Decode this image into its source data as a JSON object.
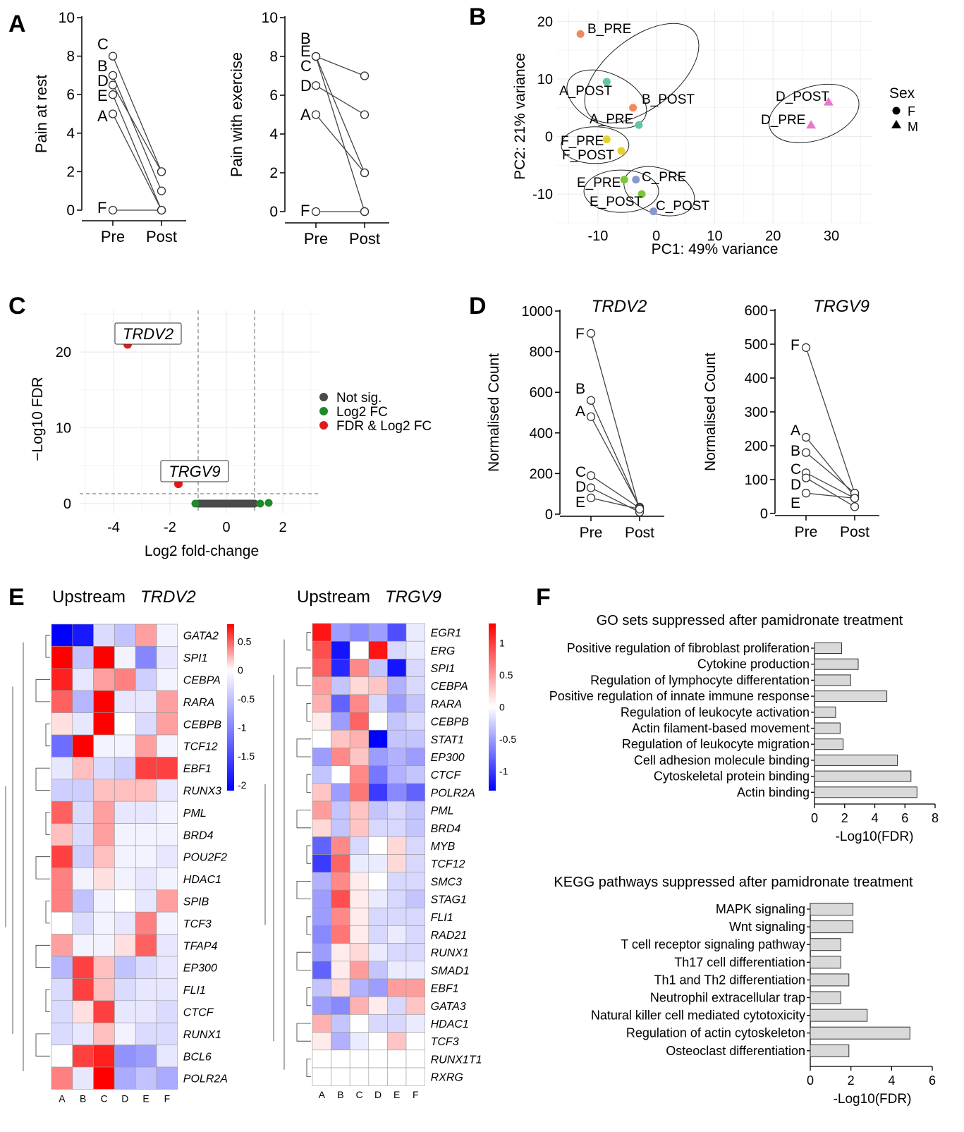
{
  "panel_letters": [
    "A",
    "B",
    "C",
    "D",
    "E",
    "F"
  ],
  "chart_data": [
    {
      "panel": "A",
      "type": "line",
      "ylabel": "Pain at rest",
      "x": [
        "Pre",
        "Post"
      ],
      "ylim": [
        0,
        10
      ],
      "yticks": [
        "0",
        "2",
        "4",
        "6",
        "8",
        "10"
      ],
      "series": [
        {
          "name": "C",
          "values": [
            8,
            2
          ]
        },
        {
          "name": "B",
          "values": [
            7,
            1
          ]
        },
        {
          "name": "D",
          "values": [
            6.5,
            2
          ]
        },
        {
          "name": "E",
          "values": [
            6,
            0
          ]
        },
        {
          "name": "A",
          "values": [
            5,
            0
          ]
        },
        {
          "name": "F",
          "values": [
            0,
            0
          ]
        }
      ]
    },
    {
      "panel": "A",
      "type": "line",
      "ylabel": "Pain with exercise",
      "x": [
        "Pre",
        "Post"
      ],
      "ylim": [
        0,
        10
      ],
      "yticks": [
        "0",
        "2",
        "4",
        "6",
        "8",
        "10"
      ],
      "series": [
        {
          "name": "B",
          "values": [
            8,
            7
          ]
        },
        {
          "name": "E",
          "values": [
            8,
            2
          ]
        },
        {
          "name": "C",
          "values": [
            8,
            0
          ]
        },
        {
          "name": "D",
          "values": [
            6.5,
            5
          ]
        },
        {
          "name": "A",
          "values": [
            5,
            2
          ]
        },
        {
          "name": "F",
          "values": [
            0,
            0
          ]
        }
      ]
    },
    {
      "panel": "B",
      "type": "scatter",
      "xlabel": "PC1: 49% variance",
      "ylabel": "PC2: 21% variance",
      "xlim": [
        -17,
        37
      ],
      "ylim": [
        -15,
        22
      ],
      "xticks": [
        "-10",
        "0",
        "10",
        "20",
        "30"
      ],
      "yticks": [
        "-10",
        "0",
        "10",
        "20"
      ],
      "legend": {
        "title": "Sex",
        "items": [
          {
            "label": "F",
            "shape": "circle"
          },
          {
            "label": "M",
            "shape": "triangle"
          }
        ]
      },
      "points": [
        {
          "label": "B_PRE",
          "x": -13,
          "y": 17.8,
          "color": "#f08a5d",
          "shape": "circle"
        },
        {
          "label": "A_POST",
          "x": -8.5,
          "y": 9.5,
          "color": "#5ec8a0",
          "shape": "circle"
        },
        {
          "label": "B_POST",
          "x": -4,
          "y": 5,
          "color": "#f08a5d",
          "shape": "circle"
        },
        {
          "label": "A_PRE",
          "x": -3,
          "y": 2,
          "color": "#5ec8a0",
          "shape": "circle"
        },
        {
          "label": "F_PRE",
          "x": -8.5,
          "y": -0.5,
          "color": "#e8d22a",
          "shape": "circle"
        },
        {
          "label": "F_POST",
          "x": -6,
          "y": -2.5,
          "color": "#e8d22a",
          "shape": "circle"
        },
        {
          "label": "E_PRE",
          "x": -5.5,
          "y": -7.5,
          "color": "#7cc43a",
          "shape": "circle"
        },
        {
          "label": "C_PRE",
          "x": -3.5,
          "y": -7.5,
          "color": "#8798d0",
          "shape": "circle"
        },
        {
          "label": "E_POST",
          "x": -2.5,
          "y": -10,
          "color": "#7cc43a",
          "shape": "circle"
        },
        {
          "label": "C_POST",
          "x": -0.5,
          "y": -13,
          "color": "#8798d0",
          "shape": "circle"
        },
        {
          "label": "D_POST",
          "x": 29.5,
          "y": 6,
          "color": "#e57bc8",
          "shape": "triangle"
        },
        {
          "label": "D_PRE",
          "x": 26.5,
          "y": 2,
          "color": "#e57bc8",
          "shape": "triangle"
        }
      ]
    },
    {
      "panel": "C",
      "type": "scatter",
      "xlabel": "Log2 fold-change",
      "ylabel": "−Log10 FDR",
      "xlim": [
        -5.2,
        3.3
      ],
      "ylim": [
        -1.3,
        25.5
      ],
      "xticks": [
        "-4",
        "-2",
        "0",
        "2"
      ],
      "yticks": [
        "0",
        "10",
        "20"
      ],
      "thresholds": {
        "x": [
          -1,
          1
        ],
        "y": 1.3
      },
      "legend": [
        {
          "label": "Not sig.",
          "color": "#4a4a4a"
        },
        {
          "label": "Log2 FC",
          "color": "#1f8a2a"
        },
        {
          "label": "FDR & Log2 FC",
          "color": "#e31a1c"
        }
      ],
      "highlighted": [
        {
          "label": "TRDV2",
          "x": -3.5,
          "y": 21,
          "color": "#e31a1c"
        },
        {
          "label": "TRGV9",
          "x": -1.7,
          "y": 2.6,
          "color": "#e31a1c"
        }
      ],
      "log2fc_only": [
        {
          "x": -1.1,
          "y": 0
        },
        {
          "x": 1.2,
          "y": 0
        },
        {
          "x": 1.5,
          "y": 0.1
        }
      ],
      "not_sig_range": [
        -1,
        1
      ]
    },
    {
      "panel": "D",
      "type": "line",
      "title": "TRDV2",
      "ylabel": "Normalised Count",
      "x": [
        "Pre",
        "Post"
      ],
      "ylim": [
        0,
        1000
      ],
      "yticks": [
        "0",
        "200",
        "400",
        "600",
        "800",
        "1000"
      ],
      "series": [
        {
          "name": "F",
          "values": [
            890,
            20
          ]
        },
        {
          "name": "B",
          "values": [
            560,
            30
          ]
        },
        {
          "name": "A",
          "values": [
            480,
            35
          ]
        },
        {
          "name": "C",
          "values": [
            190,
            30
          ]
        },
        {
          "name": "D",
          "values": [
            130,
            10
          ]
        },
        {
          "name": "E",
          "values": [
            80,
            25
          ]
        }
      ]
    },
    {
      "panel": "D",
      "type": "line",
      "title": "TRGV9",
      "ylabel": "Normalised Count",
      "x": [
        "Pre",
        "Post"
      ],
      "ylim": [
        0,
        600
      ],
      "yticks": [
        "0",
        "100",
        "200",
        "300",
        "400",
        "500",
        "600"
      ],
      "series": [
        {
          "name": "F",
          "values": [
            490,
            60
          ]
        },
        {
          "name": "A",
          "values": [
            225,
            50
          ]
        },
        {
          "name": "B",
          "values": [
            180,
            60
          ]
        },
        {
          "name": "C",
          "values": [
            120,
            45
          ]
        },
        {
          "name": "D",
          "values": [
            105,
            20
          ]
        },
        {
          "name": "E",
          "values": [
            60,
            45
          ]
        }
      ]
    },
    {
      "panel": "E",
      "type": "heatmap",
      "title_prefix": "Upstream ",
      "title_gene": "TRDV2",
      "columns": [
        "A",
        "B",
        "C",
        "D",
        "E",
        "F"
      ],
      "legend_ticks": [
        "0.5",
        "0",
        "-0.5",
        "-1",
        "-1.5",
        "-2"
      ],
      "range": [
        -2.1,
        0.8
      ],
      "rows": [
        "GATA2",
        "SPI1",
        "CEBPA",
        "RARA",
        "CEBPB",
        "TCF12",
        "EBF1",
        "RUNX3",
        "PML",
        "BRD4",
        "POU2F2",
        "HDAC1",
        "SPIB",
        "TCF3",
        "TFAP4",
        "EP300",
        "FLI1",
        "CTCF",
        "RUNX1",
        "BCL6",
        "POLR2A"
      ],
      "values": [
        [
          -2.1,
          -1.9,
          -0.3,
          -0.5,
          0.3,
          -0.1
        ],
        [
          0.8,
          -0.5,
          0.9,
          -0.1,
          -1.0,
          -0.2
        ],
        [
          0.7,
          -0.2,
          0.3,
          0.4,
          -0.4,
          -0.1
        ],
        [
          0.5,
          -0.6,
          0.8,
          -0.2,
          -0.2,
          0.3
        ],
        [
          0.1,
          -0.2,
          0.9,
          0.0,
          -0.3,
          0.3
        ],
        [
          -1.2,
          0.9,
          -0.1,
          -0.1,
          0.3,
          -0.1
        ],
        [
          -0.2,
          0.2,
          -0.3,
          -0.4,
          0.6,
          0.6
        ],
        [
          -0.4,
          -0.4,
          0.2,
          0.2,
          0.2,
          -0.2
        ],
        [
          0.5,
          -0.3,
          0.3,
          -0.2,
          -0.2,
          -0.1
        ],
        [
          0.2,
          -0.3,
          0.3,
          -0.1,
          -0.1,
          -0.1
        ],
        [
          0.6,
          -0.4,
          0.2,
          -0.1,
          -0.1,
          -0.2
        ],
        [
          0.4,
          -0.1,
          0.1,
          -0.1,
          -0.2,
          -0.1
        ],
        [
          0.4,
          -0.5,
          -0.1,
          0.0,
          -0.2,
          0.3
        ],
        [
          0.0,
          -0.3,
          -0.1,
          -0.2,
          0.4,
          -0.1
        ],
        [
          0.3,
          -0.1,
          -0.1,
          0.1,
          0.5,
          -0.2
        ],
        [
          -0.6,
          0.6,
          0.2,
          -0.5,
          -0.3,
          -0.2
        ],
        [
          -0.3,
          0.6,
          0.2,
          -0.3,
          -0.2,
          -0.2
        ],
        [
          -0.3,
          0.1,
          0.6,
          -0.2,
          -0.2,
          -0.3
        ],
        [
          -0.3,
          -0.2,
          0.2,
          -0.1,
          -0.3,
          -0.3
        ],
        [
          0.0,
          0.6,
          0.7,
          -0.9,
          -0.8,
          -0.2
        ],
        [
          0.4,
          -0.2,
          0.9,
          -0.7,
          -0.5,
          -0.7
        ]
      ]
    },
    {
      "panel": "E",
      "type": "heatmap",
      "title_prefix": "Upstream ",
      "title_gene": "TRGV9",
      "columns": [
        "A",
        "B",
        "C",
        "D",
        "E",
        "F"
      ],
      "legend_ticks": [
        "1",
        "0.5",
        "0",
        "-0.5",
        "-1"
      ],
      "range": [
        -1.3,
        1.3
      ],
      "rows": [
        "EGR1",
        "ERG",
        "SPI1",
        "CEBPA",
        "RARA",
        "CEBPB",
        "STAT1",
        "EP300",
        "CTCF",
        "POLR2A",
        "PML",
        "BRD4",
        "MYB",
        "TCF12",
        "SMC3",
        "STAG1",
        "FLI1",
        "RAD21",
        "RUNX1",
        "SMAD1",
        "EBF1",
        "GATA3",
        "HDAC1",
        "TCF3",
        "RUNX1T1",
        "RXRG"
      ],
      "values": [
        [
          1.2,
          -0.5,
          -0.6,
          -0.5,
          -0.9,
          -0.1
        ],
        [
          0.9,
          -1.2,
          0.0,
          1.2,
          -0.2,
          -0.1
        ],
        [
          0.8,
          -1.1,
          0.6,
          -0.3,
          -1.2,
          -0.2
        ],
        [
          0.5,
          -0.3,
          0.2,
          0.3,
          -0.4,
          -0.2
        ],
        [
          0.4,
          -0.8,
          0.6,
          -0.2,
          -0.5,
          -0.3
        ],
        [
          0.1,
          -0.5,
          0.8,
          0.0,
          -0.3,
          -0.2
        ],
        [
          0.0,
          0.3,
          0.4,
          -1.3,
          -0.3,
          -0.3
        ],
        [
          -0.5,
          0.6,
          0.3,
          -0.5,
          -0.4,
          -0.5
        ],
        [
          -0.3,
          0.0,
          0.6,
          -0.7,
          -0.4,
          -0.3
        ],
        [
          0.3,
          -0.5,
          0.7,
          -1.0,
          -0.6,
          -0.8
        ],
        [
          0.5,
          -0.3,
          0.3,
          -0.3,
          -0.2,
          -0.3
        ],
        [
          0.2,
          -0.3,
          0.3,
          -0.2,
          -0.2,
          -0.3
        ],
        [
          -0.8,
          0.6,
          -0.2,
          0.0,
          0.2,
          -0.2
        ],
        [
          -1.0,
          0.8,
          -0.1,
          -0.1,
          0.2,
          -0.2
        ],
        [
          -0.4,
          0.6,
          0.1,
          0.0,
          -0.2,
          -0.2
        ],
        [
          -0.5,
          0.9,
          0.1,
          -0.1,
          -0.2,
          -0.3
        ],
        [
          -0.5,
          0.6,
          0.1,
          -0.2,
          -0.2,
          -0.2
        ],
        [
          -0.6,
          0.7,
          0.1,
          -0.2,
          -0.1,
          -0.2
        ],
        [
          -0.5,
          0.1,
          0.2,
          -0.1,
          -0.2,
          -0.2
        ],
        [
          -0.8,
          0.1,
          0.5,
          -0.3,
          -0.1,
          -0.1
        ],
        [
          -0.3,
          0.2,
          -0.4,
          -0.5,
          0.5,
          0.5
        ],
        [
          -0.5,
          -0.6,
          0.4,
          0.1,
          -0.2,
          0.3
        ],
        [
          0.4,
          -0.3,
          0.0,
          -0.2,
          -0.2,
          -0.1
        ],
        [
          0.1,
          -0.4,
          -0.1,
          0.0,
          0.3,
          0.0
        ],
        [
          0.0,
          0.0,
          0.0,
          0.0,
          0.0,
          0.0
        ],
        [
          0.0,
          0.0,
          0.0,
          0.0,
          0.0,
          0.0
        ]
      ]
    },
    {
      "panel": "F",
      "type": "bar",
      "orientation": "horizontal",
      "title": "GO sets suppressed after pamidronate treatment",
      "xlabel": "-Log10(FDR)",
      "xlim": [
        0,
        8
      ],
      "xticks": [
        "0",
        "2",
        "4",
        "6",
        "8"
      ],
      "categories": [
        "Positive regulation of fibroblast proliferation",
        "Cytokine production",
        "Regulation of lymphocyte differentation",
        "Positive regulation of innate immune response",
        "Regulation of leukocyte activation",
        "Actin filament-based movement",
        "Regulation of leukocyte migration",
        "Cell adhesion molecule binding",
        "Cytoskeletal protein binding",
        "Actin binding"
      ],
      "values": [
        1.8,
        2.9,
        2.4,
        4.8,
        1.4,
        1.7,
        1.9,
        5.5,
        6.4,
        6.8
      ]
    },
    {
      "panel": "F",
      "type": "bar",
      "orientation": "horizontal",
      "title": "KEGG pathways suppressed after pamidronate treatment",
      "xlabel": "-Log10(FDR)",
      "xlim": [
        0,
        6
      ],
      "xticks": [
        "0",
        "2",
        "4",
        "6"
      ],
      "categories": [
        "MAPK signaling",
        "Wnt signaling",
        "T cell receptor signaling pathway",
        "Th17 cell differentiation",
        "Th1 and Th2 differentiation",
        "Neutrophil extracellular trap",
        "Natural killer cell mediated cytotoxicity",
        "Regulation of actin cytoskeleton",
        "Osteoclast differentiation"
      ],
      "values": [
        2.1,
        2.1,
        1.5,
        1.5,
        1.9,
        1.5,
        2.8,
        4.9,
        1.9
      ]
    }
  ]
}
